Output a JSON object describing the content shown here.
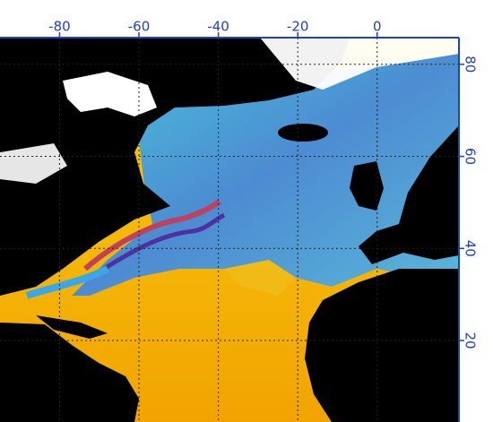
{
  "map": {
    "xticks": [
      -80,
      -60,
      -40,
      -20,
      0
    ],
    "yticks": [
      80,
      60,
      40,
      20
    ],
    "xlim": [
      -95,
      20.6
    ],
    "ylim": [
      2.3,
      85.8
    ]
  }
}
